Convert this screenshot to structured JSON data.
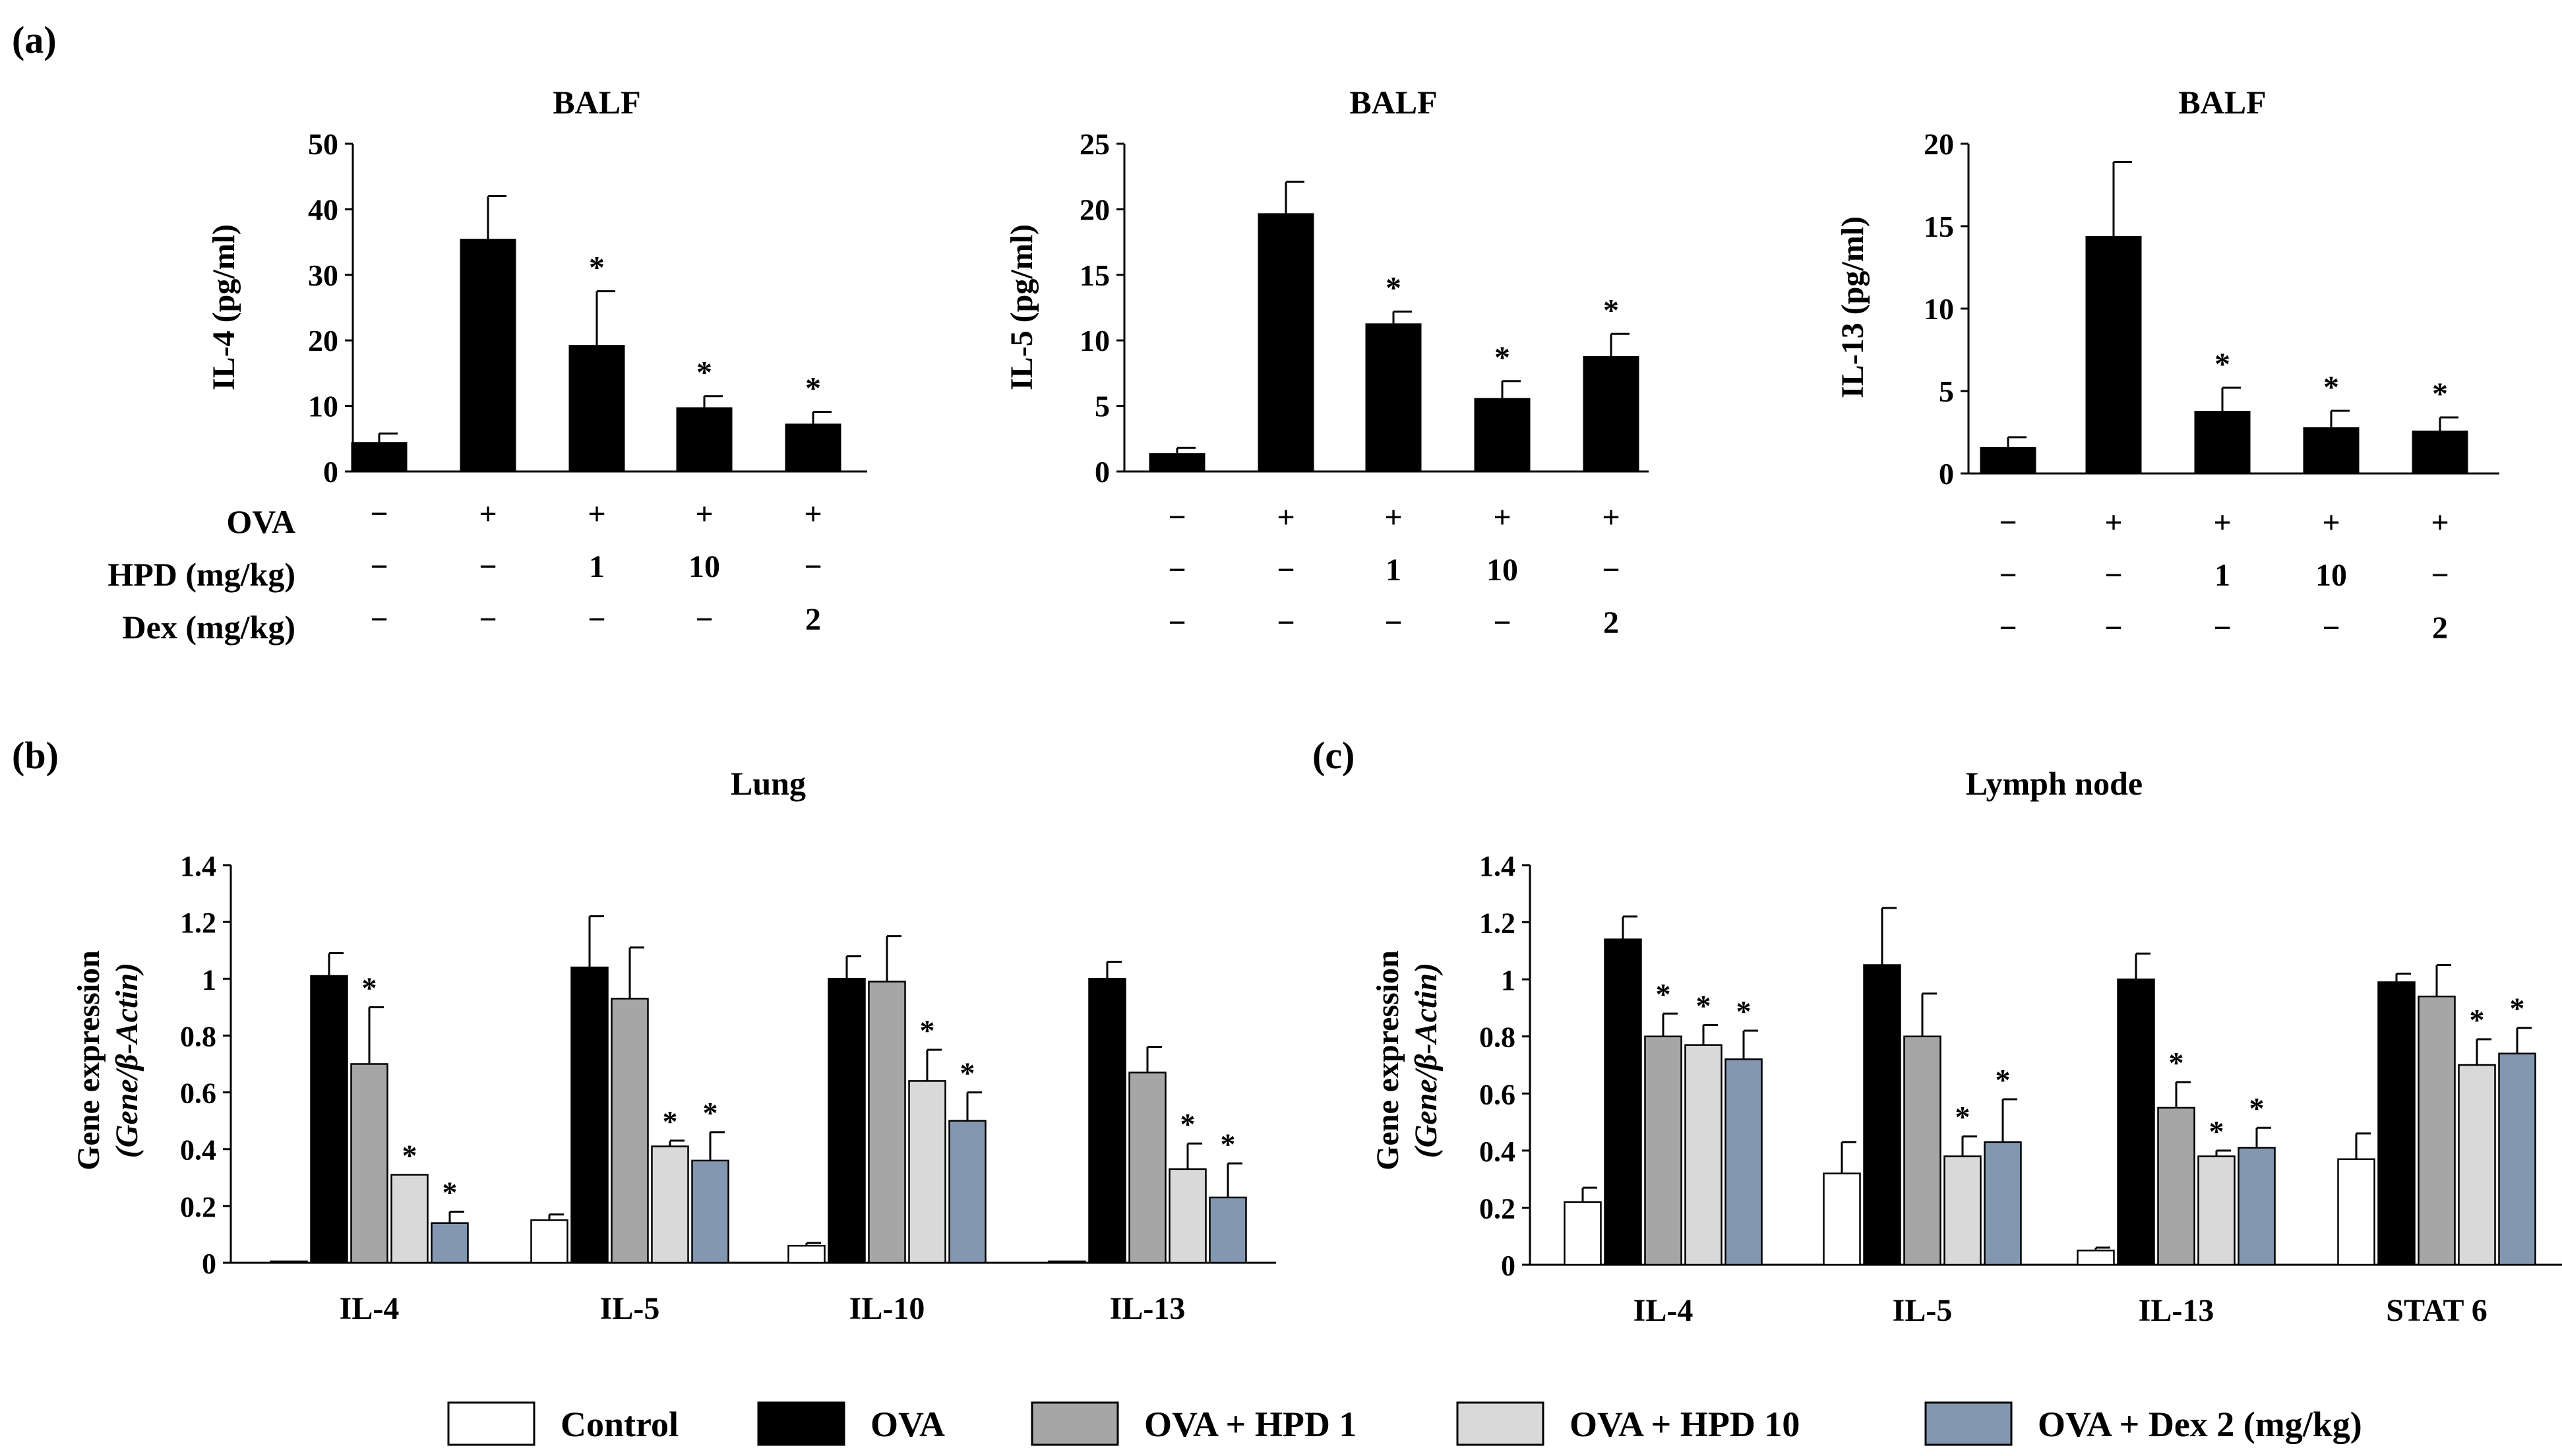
{
  "colors": {
    "control": "#ffffff",
    "ova": "#000000",
    "hpd1": "#a6a6a6",
    "hpd10": "#d9d9d9",
    "dex2": "#8497b0",
    "outline": "#000000"
  },
  "panel_labels": {
    "a": "(a)",
    "b": "(b)",
    "c": "(c)"
  },
  "treatment_table": {
    "row_labels": [
      "OVA",
      "HPD (mg/kg)",
      "Dex (mg/kg)"
    ],
    "rows": [
      [
        "−",
        "+",
        "+",
        "+",
        "+"
      ],
      [
        "−",
        "−",
        "1",
        "10",
        "−"
      ],
      [
        "−",
        "−",
        "−",
        "−",
        "2"
      ]
    ]
  },
  "legend": {
    "items": [
      {
        "label": "Control",
        "color_key": "control"
      },
      {
        "label": "OVA",
        "color_key": "ova"
      },
      {
        "label": "OVA + HPD 1",
        "color_key": "hpd1"
      },
      {
        "label": "OVA + HPD 10",
        "color_key": "hpd10"
      },
      {
        "label": "OVA + Dex 2 (mg/kg)",
        "color_key": "dex2"
      }
    ]
  },
  "chart_data": [
    {
      "id": "a1",
      "type": "bar",
      "title": "BALF",
      "ylabel": "IL-4 (pg/ml)",
      "ylim": [
        0,
        50
      ],
      "yticks": [
        0,
        10,
        20,
        30,
        40,
        50
      ],
      "ytick_labels": [
        "0",
        "10",
        "20",
        "30",
        "40",
        "50"
      ],
      "values": [
        4.5,
        35.5,
        19.3,
        9.8,
        7.3
      ],
      "errors": [
        1.3,
        6.5,
        8.2,
        1.7,
        1.8
      ],
      "significance": [
        "",
        "",
        "*",
        "*",
        "*"
      ]
    },
    {
      "id": "a2",
      "type": "bar",
      "title": "BALF",
      "ylabel": "IL-5 (pg/ml)",
      "ylim": [
        0,
        25
      ],
      "yticks": [
        0,
        5,
        10,
        15,
        20,
        25
      ],
      "ytick_labels": [
        "0",
        "5",
        "10",
        "15",
        "20",
        "25"
      ],
      "values": [
        1.4,
        19.7,
        11.3,
        5.6,
        8.8
      ],
      "errors": [
        0.4,
        2.4,
        0.9,
        1.3,
        1.7
      ],
      "significance": [
        "",
        "",
        "*",
        "*",
        "*"
      ]
    },
    {
      "id": "a3",
      "type": "bar",
      "title": "BALF",
      "ylabel": "IL-13 (pg/ml)",
      "ylim": [
        0,
        20
      ],
      "yticks": [
        0,
        5,
        10,
        15,
        20
      ],
      "ytick_labels": [
        "0",
        "5",
        "10",
        "15",
        "20"
      ],
      "values": [
        1.6,
        14.4,
        3.8,
        2.8,
        2.6
      ],
      "errors": [
        0.6,
        4.5,
        1.4,
        1.0,
        0.8
      ],
      "significance": [
        "",
        "",
        "*",
        "*",
        "*"
      ]
    },
    {
      "id": "b",
      "type": "bar",
      "title": "Lung",
      "ylabel_line1": "Gene expression",
      "ylabel_line2": "(Gene/β-Actin)",
      "ylim": [
        0,
        1.4
      ],
      "yticks": [
        0,
        0.2,
        0.4,
        0.6,
        0.8,
        1.0,
        1.2,
        1.4
      ],
      "ytick_labels": [
        "0",
        "0.2",
        "0.4",
        "0.6",
        "0.8",
        "1",
        "1.2",
        "1.4"
      ],
      "categories": [
        "IL-4",
        "IL-5",
        "IL-10",
        "IL-13"
      ],
      "series_names": [
        "Control",
        "OVA",
        "OVA + HPD 1",
        "OVA + HPD 10",
        "OVA + Dex 2 (mg/kg)"
      ],
      "values": [
        [
          0.005,
          1.01,
          0.7,
          0.31,
          0.14
        ],
        [
          0.15,
          1.04,
          0.93,
          0.41,
          0.36
        ],
        [
          0.06,
          1.0,
          0.99,
          0.64,
          0.5
        ],
        [
          0.005,
          1.0,
          0.67,
          0.33,
          0.23
        ]
      ],
      "errors": [
        [
          0.0,
          0.08,
          0.2,
          0.0,
          0.04
        ],
        [
          0.02,
          0.18,
          0.18,
          0.02,
          0.1
        ],
        [
          0.01,
          0.08,
          0.16,
          0.11,
          0.1
        ],
        [
          0.0,
          0.06,
          0.09,
          0.09,
          0.12
        ]
      ],
      "significance": [
        [
          "",
          "",
          "*",
          "*",
          "*"
        ],
        [
          "",
          "",
          "",
          "*",
          "*"
        ],
        [
          "",
          "",
          "",
          "*",
          "*"
        ],
        [
          "",
          "",
          "",
          "*",
          "*"
        ]
      ]
    },
    {
      "id": "c",
      "type": "bar",
      "title": "Lymph node",
      "ylabel_line1": "Gene expression",
      "ylabel_line2": "(Gene/β-Actin)",
      "ylim": [
        0,
        1.4
      ],
      "yticks": [
        0,
        0.2,
        0.4,
        0.6,
        0.8,
        1.0,
        1.2,
        1.4
      ],
      "ytick_labels": [
        "0",
        "0.2",
        "0.4",
        "0.6",
        "0.8",
        "1",
        "1.2",
        "1.4"
      ],
      "categories": [
        "IL-4",
        "IL-5",
        "IL-13",
        "STAT 6"
      ],
      "series_names": [
        "Control",
        "OVA",
        "OVA + HPD 1",
        "OVA + HPD 10",
        "OVA + Dex 2 (mg/kg)"
      ],
      "values": [
        [
          0.22,
          1.14,
          0.8,
          0.77,
          0.72
        ],
        [
          0.32,
          1.05,
          0.8,
          0.38,
          0.43
        ],
        [
          0.05,
          1.0,
          0.55,
          0.38,
          0.41
        ],
        [
          0.37,
          0.99,
          0.94,
          0.7,
          0.74
        ]
      ],
      "errors": [
        [
          0.05,
          0.08,
          0.08,
          0.07,
          0.1
        ],
        [
          0.11,
          0.2,
          0.15,
          0.07,
          0.15
        ],
        [
          0.01,
          0.09,
          0.09,
          0.02,
          0.07
        ],
        [
          0.09,
          0.03,
          0.11,
          0.09,
          0.09
        ]
      ],
      "significance": [
        [
          "",
          "",
          "*",
          "*",
          "*"
        ],
        [
          "",
          "",
          "",
          "*",
          "*"
        ],
        [
          "",
          "",
          "*",
          "*",
          "*"
        ],
        [
          "",
          "",
          "",
          "*",
          "*"
        ]
      ]
    }
  ]
}
